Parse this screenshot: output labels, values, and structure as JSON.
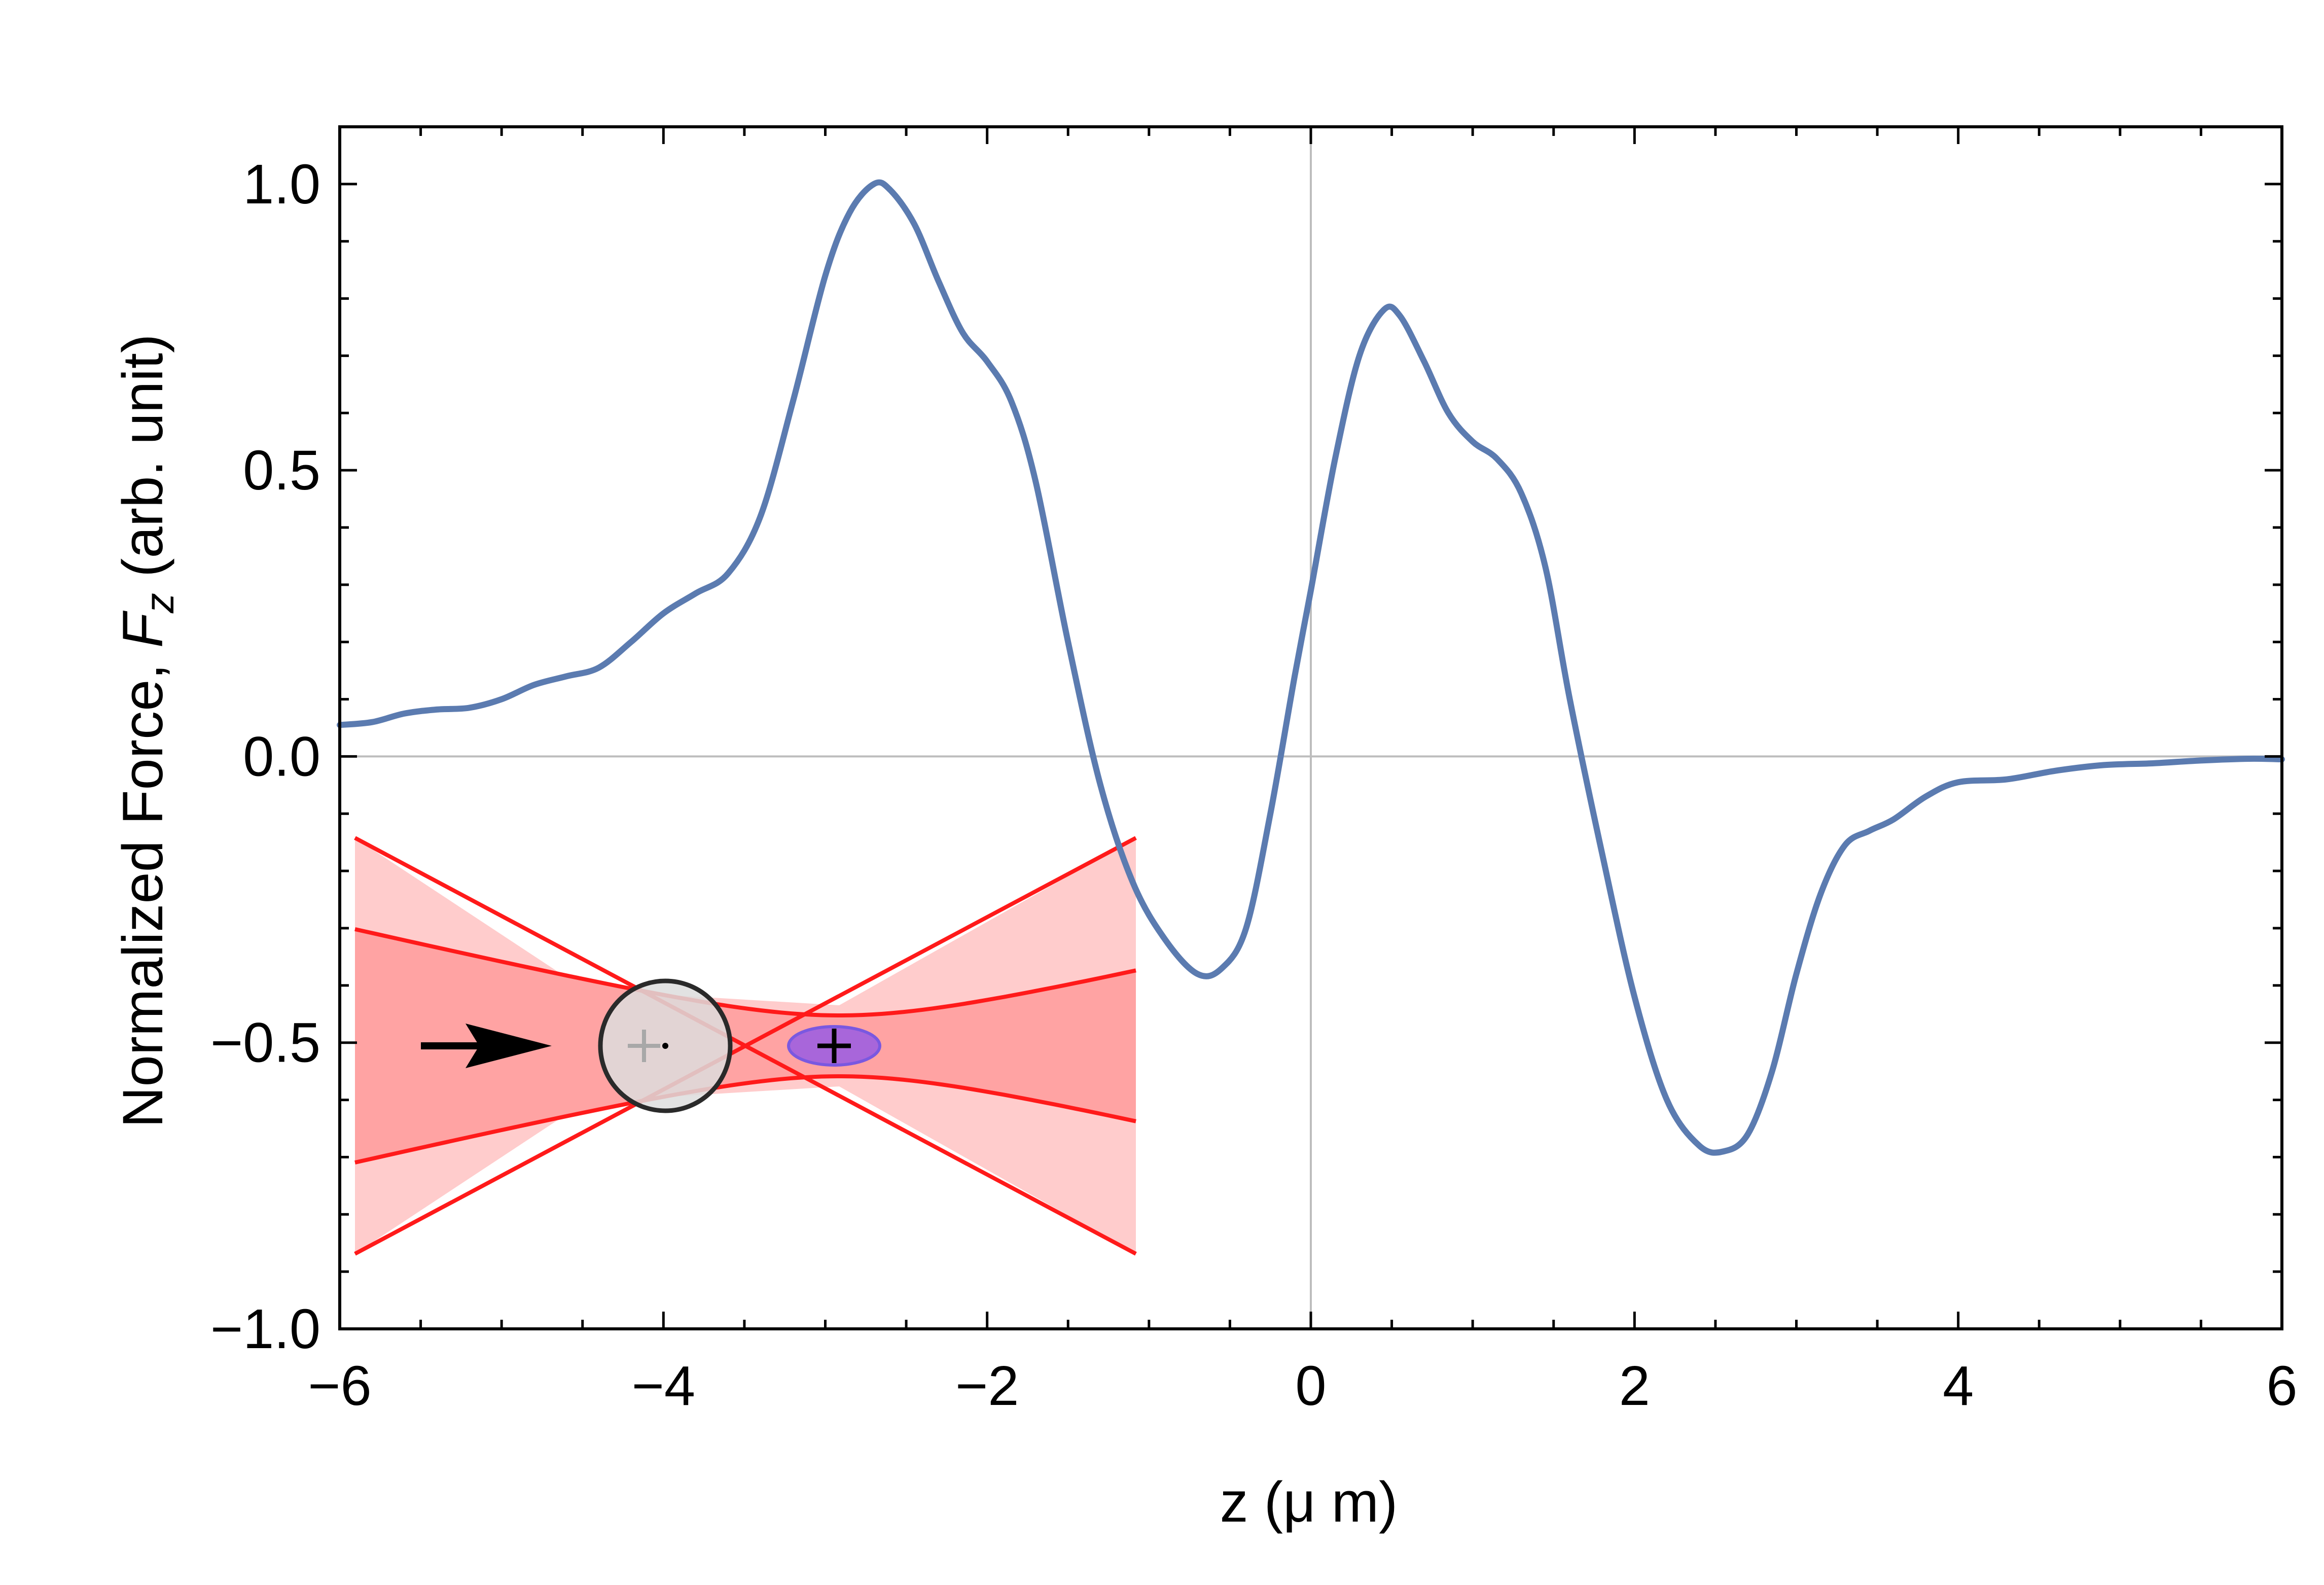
{
  "chart_data": {
    "type": "line",
    "xlabel": "z (μ m)",
    "ylabel_prefix": "Normalized Force, ",
    "ylabel_symbol": "F",
    "ylabel_subscript": "z",
    "ylabel_suffix": " (arb. unit)",
    "xlim": [
      -6,
      6
    ],
    "ylim": [
      -1.0,
      1.1
    ],
    "x_ticks": [
      -6,
      -4,
      -2,
      0,
      2,
      4,
      6
    ],
    "x_tick_labels": [
      "−6",
      "−4",
      "−2",
      "0",
      "2",
      "4",
      "6"
    ],
    "y_ticks": [
      -1.0,
      -0.5,
      0.0,
      0.5,
      1.0
    ],
    "y_tick_labels": [
      "−1.0",
      "−0.5",
      "0.0",
      "0.5",
      "1.0"
    ],
    "grid": false,
    "zero_lines": true,
    "series": [
      {
        "color": "#5b7bb0",
        "points": [
          [
            -6.0,
            0.055
          ],
          [
            -5.8,
            0.06
          ],
          [
            -5.6,
            0.075
          ],
          [
            -5.4,
            0.082
          ],
          [
            -5.2,
            0.085
          ],
          [
            -5.0,
            0.1
          ],
          [
            -4.8,
            0.125
          ],
          [
            -4.6,
            0.14
          ],
          [
            -4.4,
            0.155
          ],
          [
            -4.2,
            0.2
          ],
          [
            -4.0,
            0.25
          ],
          [
            -3.8,
            0.285
          ],
          [
            -3.6,
            0.32
          ],
          [
            -3.4,
            0.42
          ],
          [
            -3.2,
            0.62
          ],
          [
            -3.0,
            0.84
          ],
          [
            -2.85,
            0.95
          ],
          [
            -2.7,
            1.0
          ],
          [
            -2.6,
            0.99
          ],
          [
            -2.45,
            0.93
          ],
          [
            -2.3,
            0.83
          ],
          [
            -2.15,
            0.74
          ],
          [
            -2.0,
            0.69
          ],
          [
            -1.85,
            0.62
          ],
          [
            -1.7,
            0.48
          ],
          [
            -1.5,
            0.2
          ],
          [
            -1.3,
            -0.05
          ],
          [
            -1.1,
            -0.22
          ],
          [
            -0.9,
            -0.32
          ],
          [
            -0.7,
            -0.38
          ],
          [
            -0.55,
            -0.37
          ],
          [
            -0.4,
            -0.3
          ],
          [
            -0.25,
            -0.1
          ],
          [
            -0.1,
            0.14
          ],
          [
            0.0,
            0.29
          ],
          [
            0.15,
            0.52
          ],
          [
            0.3,
            0.7
          ],
          [
            0.45,
            0.78
          ],
          [
            0.55,
            0.77
          ],
          [
            0.7,
            0.69
          ],
          [
            0.85,
            0.6
          ],
          [
            1.0,
            0.55
          ],
          [
            1.15,
            0.52
          ],
          [
            1.3,
            0.46
          ],
          [
            1.45,
            0.33
          ],
          [
            1.6,
            0.1
          ],
          [
            1.8,
            -0.17
          ],
          [
            2.0,
            -0.42
          ],
          [
            2.2,
            -0.6
          ],
          [
            2.4,
            -0.68
          ],
          [
            2.55,
            -0.69
          ],
          [
            2.7,
            -0.66
          ],
          [
            2.85,
            -0.55
          ],
          [
            3.0,
            -0.38
          ],
          [
            3.15,
            -0.24
          ],
          [
            3.3,
            -0.155
          ],
          [
            3.45,
            -0.13
          ],
          [
            3.6,
            -0.11
          ],
          [
            3.8,
            -0.07
          ],
          [
            4.0,
            -0.045
          ],
          [
            4.3,
            -0.04
          ],
          [
            4.6,
            -0.025
          ],
          [
            4.9,
            -0.015
          ],
          [
            5.2,
            -0.012
          ],
          [
            5.5,
            -0.007
          ],
          [
            5.8,
            -0.004
          ],
          [
            6.0,
            -0.005
          ]
        ]
      }
    ]
  },
  "inset": {
    "description_none": "",
    "beam_fill_outer": "#ffcccc",
    "beam_fill_inner": "#ffa3a3",
    "beam_line": "#ff1a1a",
    "sphere_fill": "#dddddd",
    "ellipse_fill": "#9f5fe0",
    "ellipse_stroke": "#7a58e0",
    "arrow_color": "#000000"
  }
}
